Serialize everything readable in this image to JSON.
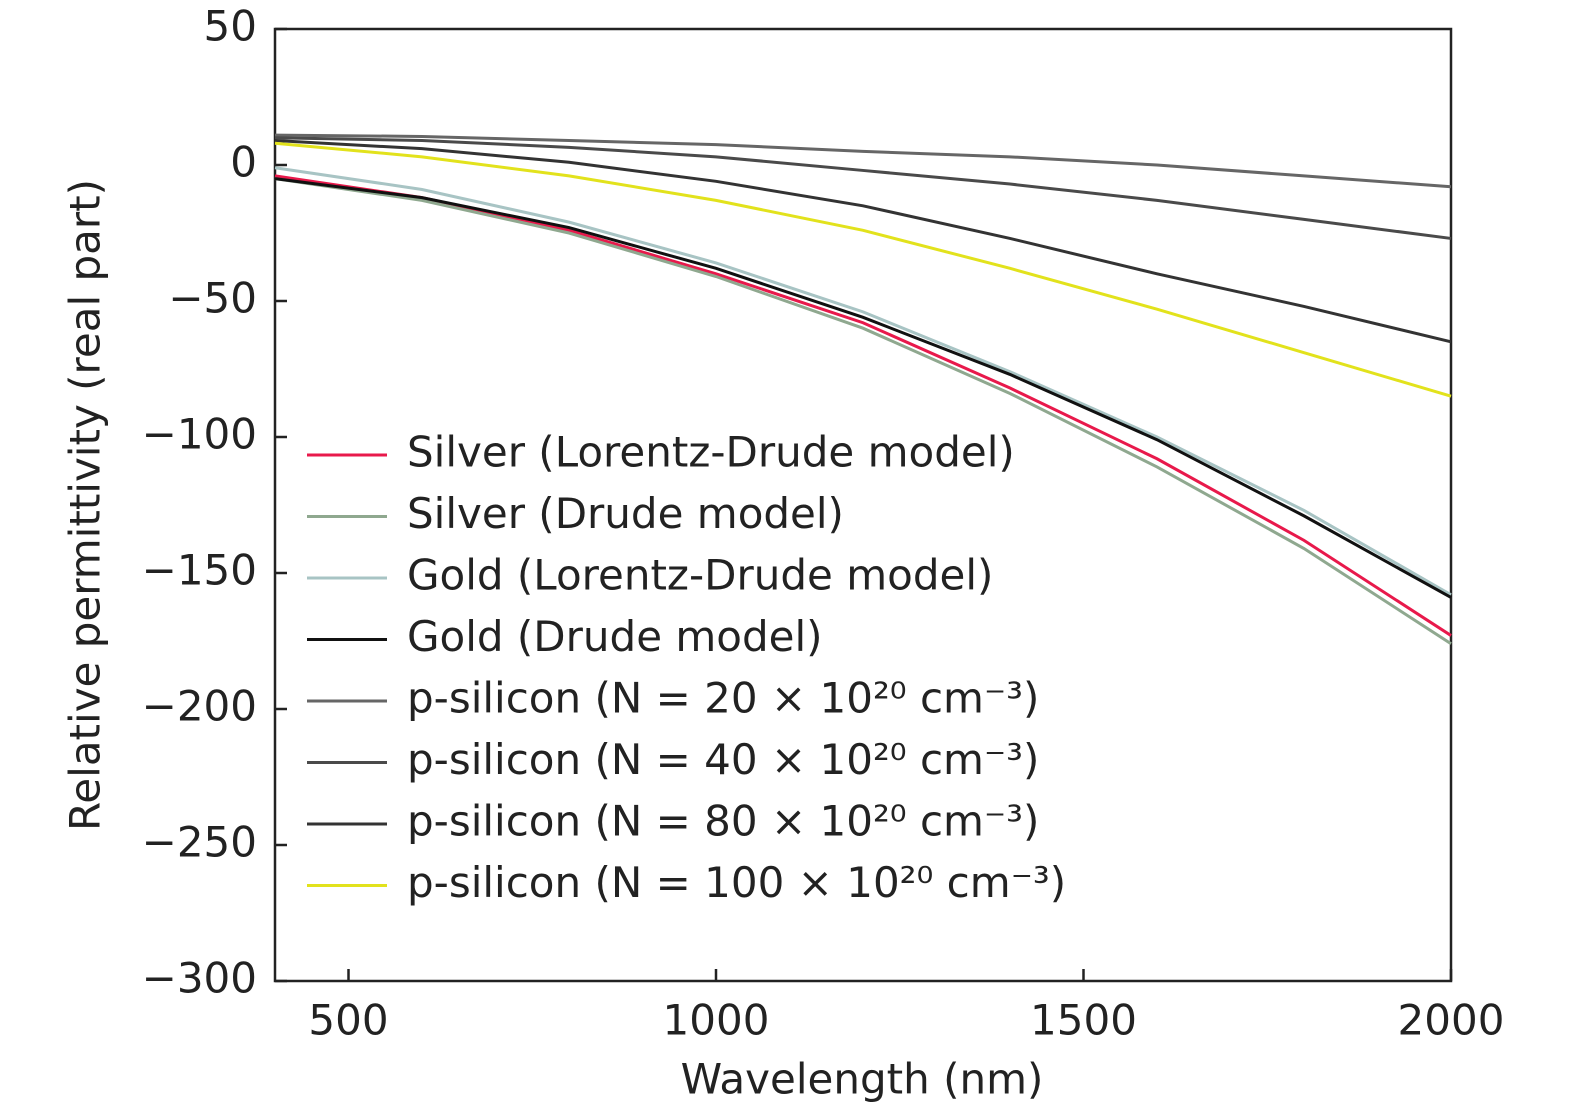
{
  "chart_data": {
    "type": "line",
    "xlabel": "Wavelength (nm)",
    "ylabel": "Relative permittivity (real part)",
    "x": [
      400,
      600,
      800,
      1000,
      1200,
      1400,
      1600,
      1800,
      2000
    ],
    "xlim": [
      400,
      2000
    ],
    "xticks": [
      500,
      1000,
      1500,
      2000
    ],
    "ylim": [
      -300,
      50
    ],
    "yticks": [
      50,
      0,
      {
        "value": -50,
        "label": "−50"
      },
      {
        "value": -100,
        "label": "−100"
      },
      {
        "value": -150,
        "label": "−150"
      },
      {
        "value": -200,
        "label": "−200"
      },
      {
        "value": -250,
        "label": "−250"
      },
      {
        "value": -300,
        "label": "−300"
      }
    ],
    "legend": "upper-left-inside",
    "series": [
      {
        "name": "Silver (Lorentz-Drude model)",
        "color": "#e8194b",
        "values": [
          -4,
          -12,
          -24,
          -40,
          -58,
          -82,
          -108,
          -138,
          -173
        ]
      },
      {
        "name": "Silver (Drude model)",
        "color": "#8fa88f",
        "values": [
          -5,
          -13,
          -25,
          -41,
          -60,
          -84,
          -111,
          -141,
          -176
        ]
      },
      {
        "name": "Gold (Lorentz-Drude model)",
        "color": "#a8c4c4",
        "values": [
          -1,
          -9,
          -21,
          -36,
          -54,
          -76,
          -100,
          -127,
          -158
        ]
      },
      {
        "name": "Gold (Drude model)",
        "color": "#111111",
        "values": [
          -5,
          -12,
          -23,
          -38,
          -56,
          -77,
          -101,
          -129,
          -159
        ]
      },
      {
        "name": "p-silicon (N = 20 × 10²⁰ cm⁻³)",
        "color": "#666666",
        "values": [
          11,
          10.5,
          9,
          7.5,
          5,
          3,
          0,
          -4,
          -8
        ]
      },
      {
        "name": "p-silicon (N = 40 × 10²⁰ cm⁻³)",
        "color": "#4a4a4a",
        "values": [
          10,
          9,
          6.5,
          3,
          -2,
          -7,
          -13,
          -20,
          -27
        ]
      },
      {
        "name": "p-silicon (N = 80 × 10²⁰ cm⁻³)",
        "color": "#333333",
        "values": [
          9,
          6,
          1,
          -6,
          -15,
          -27,
          -40,
          -52,
          -65
        ]
      },
      {
        "name": "p-silicon (N = 100 × 10²⁰ cm⁻³)",
        "color": "#e2e21c",
        "values": [
          8,
          3,
          -4,
          -13,
          -24,
          -38,
          -53,
          -69,
          -85
        ]
      }
    ]
  }
}
